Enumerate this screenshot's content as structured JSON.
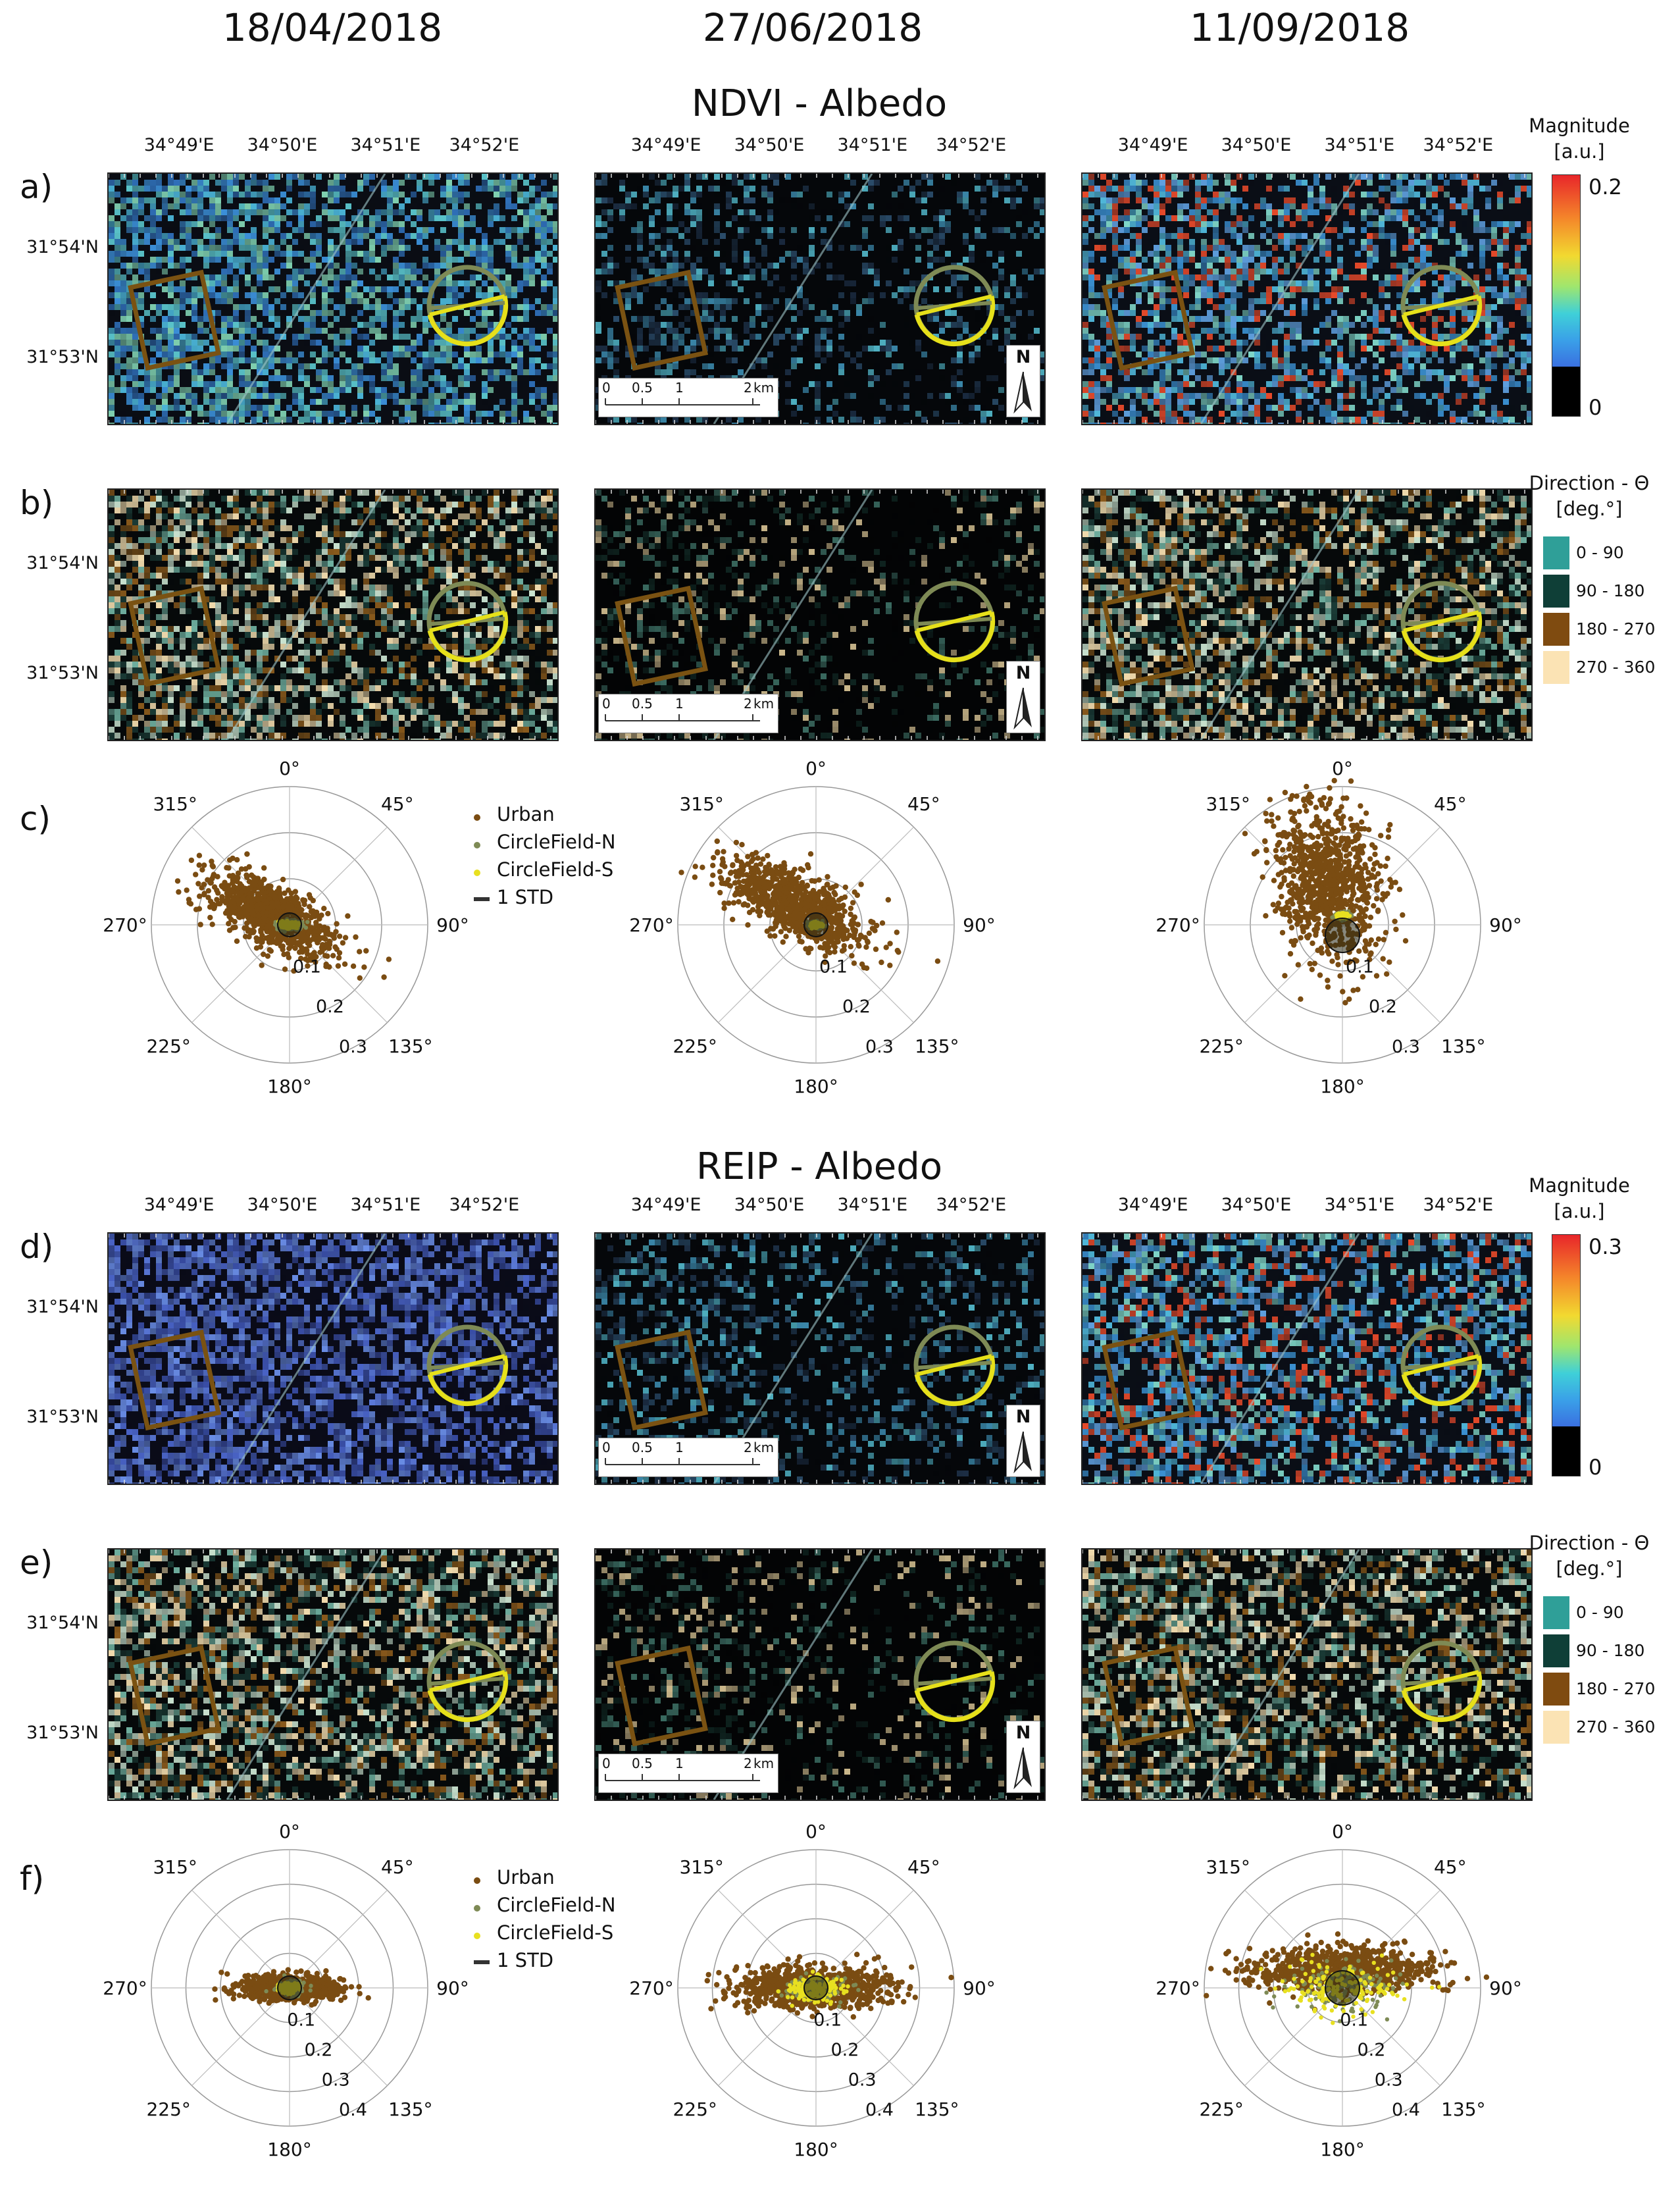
{
  "dates": [
    "18/04/2018",
    "27/06/2018",
    "11/09/2018"
  ],
  "sections": {
    "ndvi": "NDVI - Albedo",
    "reip": "REIP - Albedo"
  },
  "panel_labels": {
    "a": "a)",
    "b": "b)",
    "c": "c)",
    "d": "d)",
    "e": "e)",
    "f": "f)"
  },
  "lon_ticks": [
    "34°49'E",
    "34°50'E",
    "34°51'E",
    "34°52'E"
  ],
  "lat_ticks": [
    "31°54'N",
    "31°53'N"
  ],
  "scale_bar": {
    "t0": "0",
    "t1": "0.5",
    "t2": "1",
    "t3": "2",
    "unit": "km"
  },
  "north_label": "N",
  "magnitude_legend_ndvi": {
    "title1": "Magnitude",
    "title2": "[a.u.]",
    "max": "0.2",
    "min": "0"
  },
  "magnitude_legend_reip": {
    "title1": "Magnitude",
    "title2": "[a.u.]",
    "max": "0.3",
    "min": "0"
  },
  "direction_legend": {
    "title1": "Direction - Θ",
    "title2": "[deg.°]",
    "classes": [
      {
        "label": "0 - 90",
        "color": "#2f9f98"
      },
      {
        "label": "90 - 180",
        "color": "#0f3f37"
      },
      {
        "label": "180 - 270",
        "color": "#7f4b10"
      },
      {
        "label": "270 - 360",
        "color": "#fbe3b4"
      }
    ]
  },
  "polar_angles": [
    "0°",
    "45°",
    "90°",
    "135°",
    "180°",
    "225°",
    "270°",
    "315°"
  ],
  "polar_radii_c": [
    "0.1",
    "0.2",
    "0.3"
  ],
  "polar_radii_f": [
    "0.1",
    "0.2",
    "0.3",
    "0.4"
  ],
  "scatter_legend": {
    "urban": "Urban",
    "north": "CircleField-N",
    "south": "CircleField-S",
    "std": "1 STD"
  },
  "colors": {
    "urban": "#7a4c12",
    "north": "#7e8a55",
    "south": "#e8e020",
    "box": "#7a5212",
    "ring_n": "#7e8a55",
    "ring_s": "#e6e01a"
  },
  "chart_data": [
    {
      "type": "scatter",
      "panel": "c)",
      "date": "18/04/2018",
      "projection": "polar",
      "rlim": [
        0,
        0.3
      ],
      "series": [
        {
          "name": "Urban",
          "center_r": 0.05,
          "center_theta_deg": 300,
          "spread": "elongated NW-SE",
          "extent_r": 0.25
        },
        {
          "name": "CircleField-N",
          "center_r": 0.0,
          "center_theta_deg": 0,
          "extent_r": 0.05
        },
        {
          "name": "CircleField-S",
          "center_r": 0.0,
          "center_theta_deg": 0,
          "extent_r": 0.03
        }
      ]
    },
    {
      "type": "scatter",
      "panel": "c)",
      "date": "27/06/2018",
      "projection": "polar",
      "rlim": [
        0,
        0.3
      ],
      "series": [
        {
          "name": "Urban",
          "center_r": 0.06,
          "center_theta_deg": 315,
          "spread": "elongated NW-SE",
          "extent_r": 0.27
        },
        {
          "name": "CircleField-N",
          "center_r": 0.0,
          "center_theta_deg": 0,
          "extent_r": 0.03
        },
        {
          "name": "CircleField-S",
          "center_r": 0.0,
          "center_theta_deg": 0,
          "extent_r": 0.02
        }
      ]
    },
    {
      "type": "scatter",
      "panel": "c)",
      "date": "11/09/2018",
      "projection": "polar",
      "rlim": [
        0,
        0.3
      ],
      "series": [
        {
          "name": "Urban",
          "center_r": 0.1,
          "center_theta_deg": 340,
          "spread": "elongated NNW",
          "extent_r": 0.3
        },
        {
          "name": "CircleField-N",
          "center_r": 0.02,
          "center_theta_deg": 0,
          "extent_r": 0.03
        },
        {
          "name": "CircleField-S",
          "center_r": 0.02,
          "center_theta_deg": 0,
          "extent_r": 0.02
        }
      ]
    },
    {
      "type": "scatter",
      "panel": "f)",
      "date": "18/04/2018",
      "projection": "polar",
      "rlim": [
        0,
        0.4
      ],
      "series": [
        {
          "name": "Urban",
          "center_r": 0.0,
          "center_theta_deg": 0,
          "spread": "horizontal E-W",
          "extent_r": 0.2
        },
        {
          "name": "CircleField-N",
          "center_r": 0.0,
          "center_theta_deg": 0,
          "extent_r": 0.08
        },
        {
          "name": "CircleField-S",
          "center_r": 0.0,
          "center_theta_deg": 0,
          "extent_r": 0.05
        }
      ]
    },
    {
      "type": "scatter",
      "panel": "f)",
      "date": "27/06/2018",
      "projection": "polar",
      "rlim": [
        0,
        0.4
      ],
      "series": [
        {
          "name": "Urban",
          "center_r": 0.0,
          "center_theta_deg": 0,
          "spread": "horizontal E-W",
          "extent_r": 0.35
        },
        {
          "name": "CircleField-N",
          "center_r": 0.0,
          "center_theta_deg": 0,
          "extent_r": 0.15
        },
        {
          "name": "CircleField-S",
          "center_r": 0.0,
          "center_theta_deg": 0,
          "extent_r": 0.15
        }
      ]
    },
    {
      "type": "scatter",
      "panel": "f)",
      "date": "11/09/2018",
      "projection": "polar",
      "rlim": [
        0,
        0.4
      ],
      "series": [
        {
          "name": "Urban",
          "center_r": 0.05,
          "center_theta_deg": 0,
          "spread": "horizontal E-W",
          "extent_r": 0.4
        },
        {
          "name": "CircleField-N",
          "center_r": 0.0,
          "center_theta_deg": 0,
          "extent_r": 0.3
        },
        {
          "name": "CircleField-S",
          "center_r": 0.0,
          "center_theta_deg": 0,
          "extent_r": 0.3
        }
      ]
    }
  ]
}
